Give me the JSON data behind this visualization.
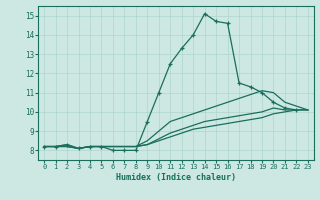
{
  "xlabel": "Humidex (Indice chaleur)",
  "xlim": [
    -0.5,
    23.5
  ],
  "ylim": [
    7.5,
    15.5
  ],
  "xtick_labels": [
    "0",
    "1",
    "2",
    "3",
    "4",
    "5",
    "6",
    "7",
    "8",
    "9",
    "10",
    "11",
    "12",
    "13",
    "14",
    "15",
    "16",
    "17",
    "18",
    "19",
    "20",
    "21",
    "22",
    "23"
  ],
  "ytick_labels": [
    "8",
    "9",
    "10",
    "11",
    "12",
    "13",
    "14",
    "15"
  ],
  "background_color": "#cde8e2",
  "grid_color": "#aed4cc",
  "line_color": "#1a6e5e",
  "lines": [
    {
      "x": [
        0,
        1,
        2,
        3,
        4,
        5,
        6,
        7,
        8,
        9,
        10,
        11,
        12,
        13,
        14,
        15,
        16,
        17,
        18,
        19,
        20,
        21,
        22
      ],
      "y": [
        8.2,
        8.2,
        8.3,
        8.1,
        8.2,
        8.2,
        8.0,
        8.0,
        8.0,
        9.5,
        11.0,
        12.5,
        13.3,
        14.0,
        15.1,
        14.7,
        14.6,
        11.5,
        11.3,
        11.0,
        10.5,
        10.2,
        10.1
      ],
      "marker": true
    },
    {
      "x": [
        0,
        1,
        2,
        3,
        4,
        5,
        6,
        7,
        8,
        9,
        10,
        11,
        12,
        13,
        14,
        15,
        16,
        17,
        18,
        19,
        20,
        21,
        22,
        23
      ],
      "y": [
        8.2,
        8.2,
        8.3,
        8.1,
        8.2,
        8.2,
        8.2,
        8.2,
        8.2,
        8.5,
        9.0,
        9.5,
        9.7,
        9.9,
        10.1,
        10.3,
        10.5,
        10.7,
        10.9,
        11.1,
        11.0,
        10.5,
        10.3,
        10.1
      ],
      "marker": false
    },
    {
      "x": [
        0,
        1,
        2,
        3,
        4,
        5,
        6,
        7,
        8,
        9,
        10,
        11,
        12,
        13,
        14,
        15,
        16,
        17,
        18,
        19,
        20,
        21,
        22,
        23
      ],
      "y": [
        8.2,
        8.2,
        8.2,
        8.1,
        8.2,
        8.2,
        8.2,
        8.2,
        8.2,
        8.3,
        8.6,
        8.9,
        9.1,
        9.3,
        9.5,
        9.6,
        9.7,
        9.8,
        9.9,
        10.0,
        10.2,
        10.1,
        10.1,
        10.1
      ],
      "marker": false
    },
    {
      "x": [
        0,
        1,
        2,
        3,
        4,
        5,
        6,
        7,
        8,
        9,
        10,
        11,
        12,
        13,
        14,
        15,
        16,
        17,
        18,
        19,
        20,
        21,
        22,
        23
      ],
      "y": [
        8.2,
        8.2,
        8.2,
        8.1,
        8.2,
        8.2,
        8.2,
        8.2,
        8.2,
        8.3,
        8.5,
        8.7,
        8.9,
        9.1,
        9.2,
        9.3,
        9.4,
        9.5,
        9.6,
        9.7,
        9.9,
        10.0,
        10.1,
        10.1
      ],
      "marker": false
    }
  ]
}
